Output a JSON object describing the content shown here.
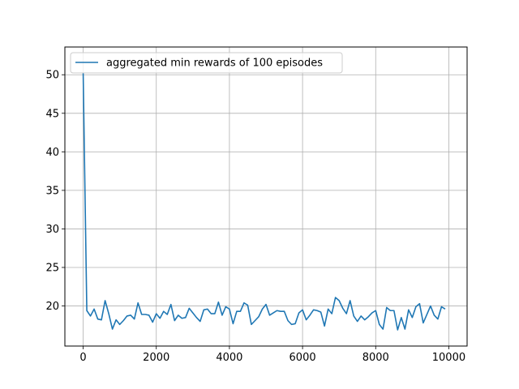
{
  "chart_data": {
    "type": "line",
    "title": "",
    "xlabel": "",
    "ylabel": "",
    "xlim": [
      -500,
      10500
    ],
    "ylim": [
      14.8,
      53.6
    ],
    "xticks": [
      0,
      2000,
      4000,
      6000,
      8000,
      10000
    ],
    "xtick_labels": [
      "0",
      "2000",
      "4000",
      "6000",
      "8000",
      "10000"
    ],
    "yticks": [
      20,
      25,
      30,
      35,
      40,
      45,
      50
    ],
    "ytick_labels": [
      "20",
      "25",
      "30",
      "35",
      "40",
      "45",
      "50"
    ],
    "grid": true,
    "legend": {
      "location": "upper-left",
      "entries": [
        "aggregated min rewards of 100 episodes"
      ]
    },
    "colors": {
      "series": "#1f77b4",
      "grid": "#b0b0b0"
    },
    "series": [
      {
        "name": "aggregated min rewards of 100 episodes",
        "x": [
          0,
          100,
          200,
          300,
          400,
          500,
          600,
          700,
          800,
          900,
          1000,
          1100,
          1200,
          1300,
          1400,
          1500,
          1600,
          1700,
          1800,
          1900,
          2000,
          2100,
          2200,
          2300,
          2400,
          2500,
          2600,
          2700,
          2800,
          2900,
          3000,
          3100,
          3200,
          3300,
          3400,
          3500,
          3600,
          3700,
          3800,
          3900,
          4000,
          4100,
          4200,
          4300,
          4400,
          4500,
          4600,
          4700,
          4800,
          4900,
          5000,
          5100,
          5200,
          5300,
          5400,
          5500,
          5600,
          5700,
          5800,
          5900,
          6000,
          6100,
          6200,
          6300,
          6400,
          6500,
          6600,
          6700,
          6800,
          6900,
          7000,
          7100,
          7200,
          7300,
          7400,
          7500,
          7600,
          7700,
          7800,
          7900,
          8000,
          8100,
          8200,
          8300,
          8400,
          8500,
          8600,
          8700,
          8800,
          8900,
          9000,
          9100,
          9200,
          9300,
          9400,
          9500,
          9600,
          9700,
          9800,
          9900
        ],
        "values": [
          50.3,
          19.4,
          18.7,
          19.6,
          18.3,
          18.2,
          20.7,
          19.0,
          17.0,
          18.2,
          17.6,
          18.1,
          18.7,
          18.8,
          18.3,
          20.4,
          18.9,
          18.9,
          18.8,
          17.9,
          19.0,
          18.4,
          19.3,
          18.9,
          20.2,
          18.1,
          18.8,
          18.4,
          18.5,
          19.7,
          19.1,
          18.5,
          18.0,
          19.5,
          19.6,
          19.0,
          19.0,
          20.5,
          18.8,
          19.9,
          19.6,
          17.7,
          19.3,
          19.3,
          20.4,
          20.1,
          17.6,
          18.1,
          18.6,
          19.6,
          20.2,
          18.8,
          19.1,
          19.4,
          19.3,
          19.3,
          18.1,
          17.6,
          17.7,
          19.1,
          19.5,
          18.2,
          18.8,
          19.5,
          19.4,
          19.2,
          17.4,
          19.6,
          19.0,
          21.1,
          20.7,
          19.7,
          19.0,
          20.7,
          18.7,
          18.0,
          18.7,
          18.2,
          18.6,
          19.1,
          19.4,
          17.6,
          17.0,
          19.8,
          19.4,
          19.4,
          16.9,
          18.5,
          17.0,
          19.5,
          18.5,
          19.9,
          20.3,
          17.8,
          18.9,
          20.0,
          18.8,
          18.3,
          19.9,
          19.6
        ]
      }
    ]
  }
}
